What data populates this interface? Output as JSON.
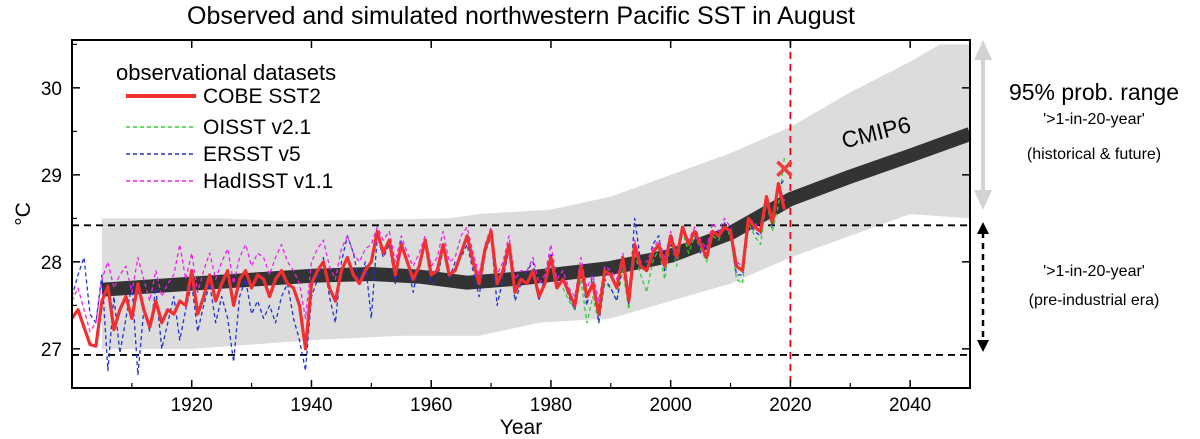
{
  "chart_data": {
    "type": "line",
    "title": "Observed and simulated northwestern Pacific SST in August",
    "xlabel": "Year",
    "ylabel": "°C",
    "xlim": [
      1900,
      2050
    ],
    "ylim": [
      26.55,
      30.55
    ],
    "xticks": [
      1920,
      1940,
      1960,
      1980,
      2000,
      2020,
      2040
    ],
    "yticks": [
      27,
      28,
      29,
      30
    ],
    "legend_title": "observational datasets",
    "legend_position": "top-left",
    "grid": false,
    "reference_lines": [
      {
        "type": "horizontal",
        "value": 28.42,
        "style": "dashed",
        "color": "#000000"
      },
      {
        "type": "horizontal",
        "value": 26.93,
        "style": "dashed",
        "color": "#000000"
      },
      {
        "type": "vertical",
        "value": 2020,
        "style": "dashed",
        "color": "#e8001c"
      }
    ],
    "highlight_point": {
      "x": 2019,
      "y": 29.07,
      "marker": "x",
      "color": "#e84040"
    },
    "cmip6": {
      "label": "CMIP6",
      "mean": [
        {
          "x": 1905,
          "y": 27.68
        },
        {
          "x": 1920,
          "y": 27.75
        },
        {
          "x": 1940,
          "y": 27.84
        },
        {
          "x": 1950,
          "y": 27.86
        },
        {
          "x": 1958,
          "y": 27.83
        },
        {
          "x": 1966,
          "y": 27.76
        },
        {
          "x": 1975,
          "y": 27.81
        },
        {
          "x": 1990,
          "y": 27.93
        },
        {
          "x": 2000,
          "y": 28.07
        },
        {
          "x": 2010,
          "y": 28.33
        },
        {
          "x": 2020,
          "y": 28.72
        },
        {
          "x": 2030,
          "y": 28.98
        },
        {
          "x": 2040,
          "y": 29.22
        },
        {
          "x": 2050,
          "y": 29.47
        }
      ],
      "range_upper": [
        {
          "x": 1905,
          "y": 28.5
        },
        {
          "x": 1925,
          "y": 28.5
        },
        {
          "x": 1935,
          "y": 28.47
        },
        {
          "x": 1963,
          "y": 28.5
        },
        {
          "x": 1968,
          "y": 28.55
        },
        {
          "x": 1980,
          "y": 28.6
        },
        {
          "x": 1990,
          "y": 28.75
        },
        {
          "x": 2000,
          "y": 29.0
        },
        {
          "x": 2010,
          "y": 29.25
        },
        {
          "x": 2020,
          "y": 29.55
        },
        {
          "x": 2030,
          "y": 29.95
        },
        {
          "x": 2040,
          "y": 30.3
        },
        {
          "x": 2045,
          "y": 30.5
        },
        {
          "x": 2050,
          "y": 30.5
        }
      ],
      "range_lower": [
        {
          "x": 1905,
          "y": 27.0
        },
        {
          "x": 1920,
          "y": 27.0
        },
        {
          "x": 1940,
          "y": 27.1
        },
        {
          "x": 1955,
          "y": 27.15
        },
        {
          "x": 1968,
          "y": 27.15
        },
        {
          "x": 1978,
          "y": 27.3
        },
        {
          "x": 1990,
          "y": 27.35
        },
        {
          "x": 2000,
          "y": 27.55
        },
        {
          "x": 2010,
          "y": 27.75
        },
        {
          "x": 2020,
          "y": 28.05
        },
        {
          "x": 2030,
          "y": 28.3
        },
        {
          "x": 2040,
          "y": 28.55
        },
        {
          "x": 2050,
          "y": 28.5
        }
      ]
    },
    "series": [
      {
        "name": "COBE SST2",
        "color": "#f03030",
        "style": "solid",
        "x": [
          1900,
          1901,
          1902,
          1903,
          1904,
          1905,
          1906,
          1907,
          1908,
          1909,
          1910,
          1911,
          1912,
          1913,
          1914,
          1915,
          1916,
          1917,
          1918,
          1919,
          1920,
          1921,
          1922,
          1923,
          1924,
          1925,
          1926,
          1927,
          1928,
          1929,
          1930,
          1931,
          1932,
          1933,
          1934,
          1935,
          1936,
          1937,
          1938,
          1939,
          1940,
          1941,
          1942,
          1943,
          1944,
          1945,
          1946,
          1947,
          1948,
          1949,
          1950,
          1951,
          1952,
          1953,
          1954,
          1955,
          1956,
          1957,
          1958,
          1959,
          1960,
          1961,
          1962,
          1963,
          1964,
          1965,
          1966,
          1967,
          1968,
          1969,
          1970,
          1971,
          1972,
          1973,
          1974,
          1975,
          1976,
          1977,
          1978,
          1979,
          1980,
          1981,
          1982,
          1983,
          1984,
          1985,
          1986,
          1987,
          1988,
          1989,
          1990,
          1991,
          1992,
          1993,
          1994,
          1995,
          1996,
          1997,
          1998,
          1999,
          2000,
          2001,
          2002,
          2003,
          2004,
          2005,
          2006,
          2007,
          2008,
          2009,
          2010,
          2011,
          2012,
          2013,
          2014,
          2015,
          2016,
          2017,
          2018,
          2019
        ],
        "y": [
          27.35,
          27.45,
          27.25,
          27.05,
          27.03,
          27.55,
          27.72,
          27.22,
          27.45,
          27.6,
          27.35,
          27.75,
          27.45,
          27.25,
          27.55,
          27.3,
          27.45,
          27.4,
          27.55,
          27.5,
          27.9,
          27.4,
          27.6,
          27.85,
          27.55,
          27.75,
          27.9,
          27.5,
          27.8,
          27.9,
          27.7,
          27.85,
          27.8,
          27.6,
          27.8,
          27.9,
          27.75,
          27.7,
          27.5,
          27.0,
          27.75,
          27.9,
          28.0,
          27.7,
          27.55,
          27.9,
          28.05,
          27.85,
          27.75,
          27.9,
          28.0,
          28.35,
          28.1,
          28.25,
          27.85,
          28.2,
          28.0,
          27.8,
          27.95,
          28.25,
          27.85,
          27.9,
          28.2,
          27.85,
          27.9,
          28.1,
          28.3,
          28.0,
          27.75,
          28.15,
          28.35,
          27.75,
          27.9,
          28.2,
          27.65,
          27.8,
          27.75,
          27.9,
          27.6,
          27.75,
          28.05,
          27.7,
          27.8,
          27.65,
          27.5,
          27.95,
          27.6,
          27.75,
          27.4,
          27.9,
          27.85,
          27.7,
          28.05,
          27.55,
          28.2,
          27.95,
          27.9,
          28.1,
          28.2,
          27.95,
          28.3,
          28.05,
          28.4,
          28.2,
          28.35,
          28.2,
          28.05,
          28.35,
          28.3,
          28.4,
          28.35,
          27.95,
          27.9,
          28.5,
          28.4,
          28.35,
          28.75,
          28.45,
          28.9,
          28.6
        ]
      },
      {
        "name": "OISST v2.1",
        "color": "#33cc33",
        "style": "dashed",
        "x": [
          1982,
          1983,
          1984,
          1985,
          1986,
          1987,
          1988,
          1989,
          1990,
          1991,
          1992,
          1993,
          1994,
          1995,
          1996,
          1997,
          1998,
          1999,
          2000,
          2001,
          2002,
          2003,
          2004,
          2005,
          2006,
          2007,
          2008,
          2009,
          2010,
          2011,
          2012,
          2013,
          2014,
          2015,
          2016,
          2017,
          2018,
          2019
        ],
        "y": [
          27.7,
          27.55,
          27.45,
          27.8,
          27.3,
          27.6,
          27.3,
          27.75,
          27.7,
          27.55,
          27.9,
          27.45,
          28.1,
          27.85,
          27.65,
          28.0,
          28.15,
          27.8,
          28.25,
          27.95,
          28.35,
          28.1,
          28.3,
          28.15,
          28.0,
          28.3,
          28.25,
          28.4,
          28.3,
          27.8,
          27.75,
          28.45,
          28.3,
          28.2,
          28.7,
          28.35,
          28.65,
          29.2
        ]
      },
      {
        "name": "ERSST v5",
        "color": "#2233cc",
        "style": "dashed",
        "x": [
          1900,
          1901,
          1902,
          1903,
          1904,
          1905,
          1906,
          1907,
          1908,
          1909,
          1910,
          1911,
          1912,
          1913,
          1914,
          1915,
          1916,
          1917,
          1918,
          1919,
          1920,
          1921,
          1922,
          1923,
          1924,
          1925,
          1926,
          1927,
          1928,
          1929,
          1930,
          1931,
          1932,
          1933,
          1934,
          1935,
          1936,
          1937,
          1938,
          1939,
          1940,
          1941,
          1942,
          1943,
          1944,
          1945,
          1946,
          1947,
          1948,
          1949,
          1950,
          1951,
          1952,
          1953,
          1954,
          1955,
          1956,
          1957,
          1958,
          1959,
          1960,
          1961,
          1962,
          1963,
          1964,
          1965,
          1966,
          1967,
          1968,
          1969,
          1970,
          1971,
          1972,
          1973,
          1974,
          1975,
          1976,
          1977,
          1978,
          1979,
          1980,
          1981,
          1982,
          1983,
          1984,
          1985,
          1986,
          1987,
          1988,
          1989,
          1990,
          1991,
          1992,
          1993,
          1994,
          1995,
          1996,
          1997,
          1998,
          1999,
          2000,
          2001,
          2002,
          2003,
          2004,
          2005,
          2006,
          2007,
          2008,
          2009,
          2010,
          2011,
          2012,
          2013,
          2014,
          2015,
          2016,
          2017,
          2018,
          2019
        ],
        "y": [
          27.6,
          27.85,
          28.05,
          27.4,
          27.3,
          27.85,
          26.75,
          27.6,
          26.95,
          27.35,
          27.75,
          26.7,
          27.45,
          27.2,
          27.7,
          27.0,
          27.3,
          27.6,
          27.1,
          27.45,
          27.75,
          27.2,
          27.5,
          27.75,
          27.3,
          27.6,
          27.35,
          26.85,
          27.6,
          27.8,
          27.4,
          27.55,
          27.35,
          27.5,
          27.3,
          27.6,
          27.75,
          27.35,
          27.1,
          26.75,
          27.6,
          27.8,
          28.05,
          27.6,
          27.3,
          28.0,
          28.3,
          28.1,
          27.75,
          28.0,
          27.35,
          28.3,
          28.05,
          28.2,
          27.75,
          28.25,
          28.0,
          27.65,
          28.0,
          28.2,
          27.75,
          27.8,
          28.15,
          27.8,
          28.0,
          28.05,
          28.2,
          27.9,
          27.6,
          28.1,
          28.3,
          27.5,
          27.8,
          28.15,
          27.55,
          27.75,
          27.9,
          28.0,
          27.55,
          27.85,
          28.1,
          27.75,
          27.8,
          27.6,
          27.45,
          27.9,
          27.5,
          27.85,
          27.3,
          27.8,
          27.7,
          27.55,
          28.0,
          27.5,
          28.5,
          28.0,
          27.9,
          28.2,
          28.3,
          27.9,
          28.2,
          28.0,
          28.35,
          28.25,
          28.3,
          28.1,
          28.2,
          28.35,
          28.3,
          28.45,
          28.3,
          27.85,
          27.85,
          28.45,
          28.35,
          28.3,
          28.7,
          28.4,
          28.85,
          28.95
        ]
      },
      {
        "name": "HadISST v1.1",
        "color": "#ee22ee",
        "style": "dashed",
        "x": [
          1900,
          1901,
          1902,
          1903,
          1904,
          1905,
          1906,
          1907,
          1908,
          1909,
          1910,
          1911,
          1912,
          1913,
          1914,
          1915,
          1916,
          1917,
          1918,
          1919,
          1920,
          1921,
          1922,
          1923,
          1924,
          1925,
          1926,
          1927,
          1928,
          1929,
          1930,
          1931,
          1932,
          1933,
          1934,
          1935,
          1936,
          1937,
          1938,
          1939,
          1940,
          1941,
          1942,
          1943,
          1944,
          1945,
          1946,
          1947,
          1948,
          1949,
          1950,
          1951,
          1952,
          1953,
          1954,
          1955,
          1956,
          1957,
          1958,
          1959,
          1960,
          1961,
          1962,
          1963,
          1964,
          1965,
          1966,
          1967,
          1968,
          1969,
          1970,
          1971,
          1972,
          1973,
          1974,
          1975,
          1976,
          1977,
          1978,
          1979,
          1980,
          1981,
          1982,
          1983,
          1984,
          1985,
          1986,
          1987,
          1988,
          1989,
          1990,
          1991,
          1992,
          1993,
          1994,
          1995,
          1996,
          1997,
          1998,
          1999,
          2000,
          2001,
          2002,
          2003,
          2004,
          2005,
          2006,
          2007,
          2008,
          2009,
          2010,
          2011,
          2012,
          2013,
          2014,
          2015,
          2016,
          2017,
          2018,
          2019
        ],
        "y": [
          27.55,
          27.7,
          27.45,
          27.2,
          27.3,
          27.8,
          28.0,
          27.7,
          27.85,
          27.95,
          27.65,
          28.05,
          27.8,
          27.55,
          27.9,
          27.6,
          27.75,
          27.85,
          28.2,
          27.8,
          28.1,
          27.65,
          27.9,
          28.1,
          27.8,
          28.0,
          28.15,
          27.75,
          28.05,
          28.2,
          27.95,
          28.1,
          28.05,
          27.85,
          28.05,
          28.2,
          28.0,
          27.9,
          27.75,
          27.35,
          28.0,
          28.15,
          28.25,
          27.95,
          27.8,
          28.15,
          28.3,
          28.1,
          28.0,
          28.15,
          28.2,
          28.4,
          28.25,
          28.35,
          28.0,
          28.3,
          28.1,
          27.95,
          28.1,
          28.3,
          27.95,
          28.05,
          28.35,
          28.0,
          28.05,
          28.3,
          28.4,
          28.1,
          27.85,
          28.2,
          28.4,
          27.85,
          28.0,
          28.3,
          27.8,
          27.9,
          27.9,
          28.05,
          27.75,
          27.85,
          28.2,
          27.8,
          27.9,
          27.7,
          27.6,
          28.05,
          27.7,
          27.85,
          27.55,
          27.95,
          27.9,
          27.8,
          28.1,
          27.65,
          28.25,
          28.0,
          28.0,
          28.15,
          28.25,
          28.05,
          28.35,
          28.1,
          28.4,
          28.25,
          28.4,
          28.25,
          28.15,
          28.45,
          28.35,
          28.5,
          28.4,
          28.0,
          27.95,
          28.5,
          28.45,
          28.35,
          28.75,
          28.5,
          28.9,
          28.7
        ]
      }
    ],
    "annotations": {
      "prob_range_title": "95% prob. range",
      "upper_arrow_label": "'>1-in-20-year'",
      "upper_arrow_sublabel": "(historical & future)",
      "lower_arrow_label": "'>1-in-20-year'",
      "lower_arrow_sublabel": "(pre-industrial era)"
    }
  }
}
